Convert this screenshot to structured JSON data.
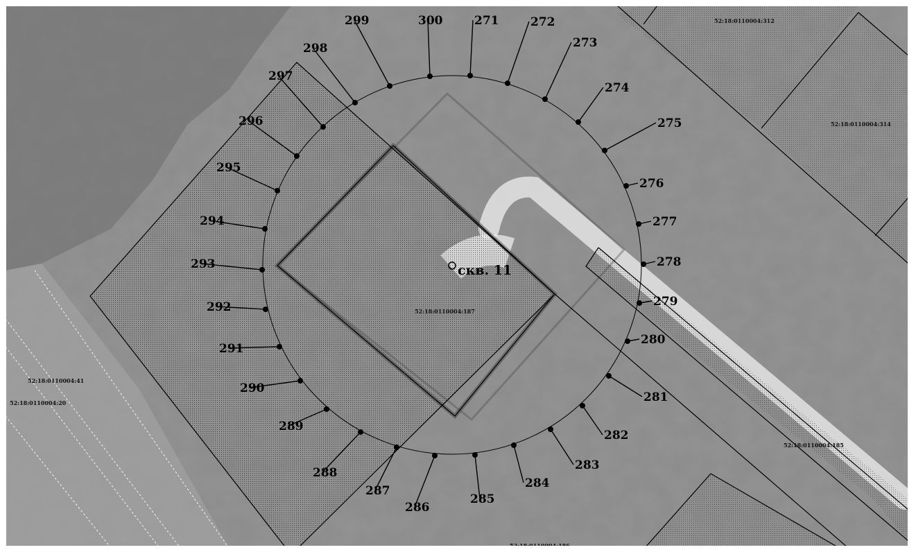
{
  "map": {
    "well_label": "скв. 11",
    "parcels": [
      {
        "id": "p312",
        "label": "52:18:0110004:312"
      },
      {
        "id": "p314",
        "label": "52:18:0110004:314"
      },
      {
        "id": "p187",
        "label": "52:18:0110004:187"
      },
      {
        "id": "p41",
        "label": "52:18:0110004:41"
      },
      {
        "id": "p20",
        "label": "52:18:0110004:20"
      },
      {
        "id": "p185",
        "label": "52:18:0110004:185"
      },
      {
        "id": "p186",
        "label": "52:18:0110004:186"
      }
    ],
    "boundary_points": [
      "271",
      "272",
      "273",
      "274",
      "275",
      "276",
      "277",
      "278",
      "279",
      "280",
      "281",
      "282",
      "283",
      "284",
      "285",
      "286",
      "287",
      "288",
      "289",
      "290",
      "291",
      "292",
      "293",
      "294",
      "295",
      "296",
      "297",
      "298",
      "299",
      "300"
    ]
  }
}
